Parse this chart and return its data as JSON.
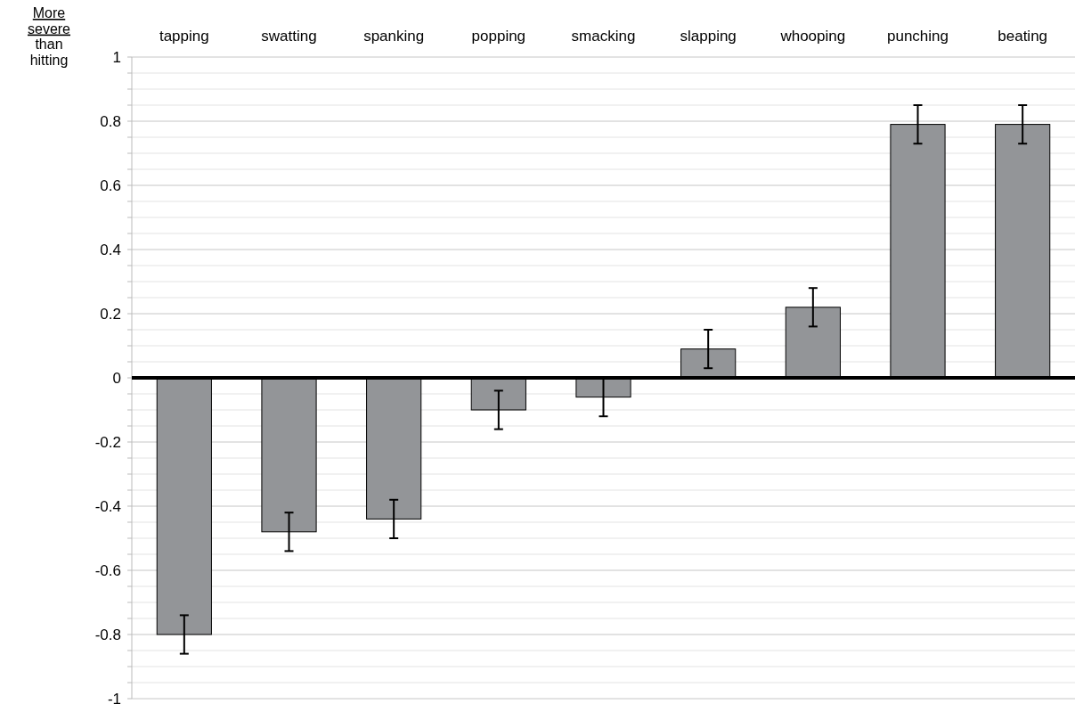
{
  "chart_data": {
    "type": "bar",
    "ylabel": "More severe than hitting",
    "categories": [
      "tapping",
      "swatting",
      "spanking",
      "popping",
      "smacking",
      "slapping",
      "whooping",
      "punching",
      "beating"
    ],
    "values": [
      -0.8,
      -0.48,
      -0.44,
      -0.1,
      -0.06,
      0.09,
      0.22,
      0.79,
      0.79
    ],
    "errors": [
      0.06,
      0.06,
      0.06,
      0.06,
      0.06,
      0.06,
      0.06,
      0.06,
      0.06
    ],
    "color": "#939598",
    "ylim": [
      -1,
      1
    ],
    "yticks": [
      -1,
      {
        "value": -0.95,
        "label": null
      },
      {
        "value": -0.9,
        "label": null
      },
      {
        "value": -0.85,
        "label": null
      },
      -0.8,
      {
        "value": -0.75,
        "label": null
      },
      {
        "value": -0.7,
        "label": null
      },
      {
        "value": -0.65,
        "label": null
      },
      -0.6,
      {
        "value": -0.55,
        "label": null
      },
      {
        "value": -0.5,
        "label": null
      },
      {
        "value": -0.45,
        "label": null
      },
      -0.4,
      {
        "value": -0.35,
        "label": null
      },
      {
        "value": -0.3,
        "label": null
      },
      {
        "value": -0.25,
        "label": null
      },
      -0.2,
      {
        "value": -0.15,
        "label": null
      },
      {
        "value": -0.1,
        "label": null
      },
      {
        "value": -0.05,
        "label": null
      },
      0,
      {
        "value": 0.05,
        "label": null
      },
      {
        "value": 0.1,
        "label": null
      },
      {
        "value": 0.15,
        "label": null
      },
      0.2,
      {
        "value": 0.25,
        "label": null
      },
      {
        "value": 0.3,
        "label": null
      },
      {
        "value": 0.35,
        "label": null
      },
      0.4,
      {
        "value": 0.45,
        "label": null
      },
      {
        "value": 0.5,
        "label": null
      },
      {
        "value": 0.55,
        "label": null
      },
      0.6,
      {
        "value": 0.65,
        "label": null
      },
      {
        "value": 0.7,
        "label": null
      },
      {
        "value": 0.75,
        "label": null
      },
      0.8,
      {
        "value": 0.85,
        "label": null
      },
      {
        "value": 0.9,
        "label": null
      },
      {
        "value": 0.95,
        "label": null
      },
      1
    ],
    "grid": "y"
  }
}
